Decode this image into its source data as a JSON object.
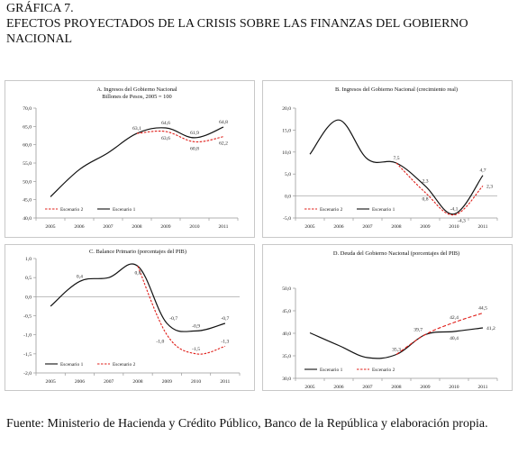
{
  "page": {
    "figure_label": "GRÁFICA 7.",
    "figure_title": "EFECTOS PROYECTADOS DE LA CRISIS SOBRE LAS FINANZAS DEL GOBIERNO NACIONAL",
    "source": "Fuente: Ministerio de Hacienda y Crédito Público, Banco de la República y elaboración propia."
  },
  "colors": {
    "escenario1": "#111111",
    "escenario2": "#e0201b",
    "axis": "#999999"
  },
  "chart_data": [
    {
      "id": "A",
      "type": "line",
      "title": "A. Ingresos del Gobierno Nacional",
      "subtitle": "Billones de Pesos, 2005 = 100",
      "x": [
        "2005",
        "2006",
        "2007",
        "2008",
        "2009",
        "2010",
        "2011"
      ],
      "ylim": [
        40,
        70
      ],
      "yticks": [
        "40,0",
        "45,0",
        "50,0",
        "55,0",
        "60,0",
        "65,0",
        "70,0"
      ],
      "ytick_values": [
        40,
        45,
        50,
        55,
        60,
        65,
        70
      ],
      "legend": [
        "Escenario 2",
        "Escenario 1"
      ],
      "legend_position": "bottom-left",
      "series": [
        {
          "name": "Escenario 1",
          "style": "solid",
          "values": [
            45.8,
            53.2,
            57.8,
            63.1,
            64.6,
            61.9,
            64.8
          ]
        },
        {
          "name": "Escenario 2",
          "style": "dashed",
          "values": [
            null,
            null,
            null,
            63.1,
            63.6,
            60.8,
            62.2
          ]
        }
      ],
      "labels": [
        {
          "text": "63,1",
          "x": 3,
          "y": 63.1,
          "pos": "above"
        },
        {
          "text": "64,6",
          "x": 4,
          "y": 64.6,
          "pos": "above"
        },
        {
          "text": "63,6",
          "x": 4,
          "y": 63.6,
          "pos": "below"
        },
        {
          "text": "61,9",
          "x": 5,
          "y": 61.9,
          "pos": "above"
        },
        {
          "text": "60,8",
          "x": 5,
          "y": 60.8,
          "pos": "below"
        },
        {
          "text": "64,8",
          "x": 6,
          "y": 64.8,
          "pos": "above"
        },
        {
          "text": "62,2",
          "x": 6,
          "y": 62.2,
          "pos": "below"
        }
      ]
    },
    {
      "id": "B",
      "type": "line",
      "title": "B. Ingresos del Gobierno Nacional (crecimiento real)",
      "x": [
        "2005",
        "2006",
        "2007",
        "2008",
        "2009",
        "2010",
        "2011"
      ],
      "ylim": [
        -5,
        20
      ],
      "yticks": [
        "-5,0",
        "0,0",
        "5,0",
        "10,0",
        "15,0",
        "20,0"
      ],
      "ytick_values": [
        -5,
        0,
        5,
        10,
        15,
        20
      ],
      "legend": [
        "Escenario 2",
        "Escenario 1"
      ],
      "legend_position": "bottom-left",
      "series": [
        {
          "name": "Escenario 1",
          "style": "solid",
          "values": [
            9.5,
            17.3,
            8.4,
            7.5,
            2.3,
            -4.1,
            4.7
          ]
        },
        {
          "name": "Escenario 2",
          "style": "dashed",
          "values": [
            null,
            null,
            null,
            7.5,
            0.8,
            -4.3,
            2.3
          ]
        }
      ],
      "labels": [
        {
          "text": "7,5",
          "x": 3,
          "y": 7.5,
          "pos": "above"
        },
        {
          "text": "2,3",
          "x": 4,
          "y": 2.3,
          "pos": "above"
        },
        {
          "text": "0,8",
          "x": 4,
          "y": 0.8,
          "pos": "below"
        },
        {
          "text": "-4,1",
          "x": 5,
          "y": -4.1,
          "pos": "above"
        },
        {
          "text": "-4,3",
          "x": 5,
          "y": -4.3,
          "pos": "belowright"
        },
        {
          "text": "4,7",
          "x": 6,
          "y": 4.7,
          "pos": "above"
        },
        {
          "text": "2,3",
          "x": 6,
          "y": 2.3,
          "pos": "right"
        }
      ]
    },
    {
      "id": "C",
      "type": "line",
      "title": "C. Balance Primario (porcentajes del PIB)",
      "x": [
        "2005",
        "2006",
        "2007",
        "2008",
        "2009",
        "2010",
        "2011"
      ],
      "ylim": [
        -2.0,
        1.0
      ],
      "yticks": [
        "-2,0",
        "-1,5",
        "-1,0",
        "-0,5",
        "0,0",
        "0,5",
        "1,0"
      ],
      "ytick_values": [
        -2,
        -1.5,
        -1,
        -0.5,
        0,
        0.5,
        1
      ],
      "legend": [
        "Escenario 1",
        "Escenario 2"
      ],
      "legend_position": "bottom-left",
      "series": [
        {
          "name": "Escenario 1",
          "style": "solid",
          "values": [
            -0.25,
            0.4,
            0.5,
            0.8,
            -0.7,
            -0.9,
            -0.7
          ]
        },
        {
          "name": "Escenario 2",
          "style": "dashed",
          "values": [
            null,
            null,
            null,
            0.8,
            -1.0,
            -1.5,
            -1.3
          ]
        }
      ],
      "labels": [
        {
          "text": "0,4",
          "x": 1,
          "y": 0.4,
          "pos": "above"
        },
        {
          "text": "0,8",
          "x": 3,
          "y": 0.8,
          "pos": "below"
        },
        {
          "text": "-0,7",
          "x": 4,
          "y": -0.7,
          "pos": "aboveright"
        },
        {
          "text": "-1,0",
          "x": 4,
          "y": -1.0,
          "pos": "belowleft"
        },
        {
          "text": "-0,9",
          "x": 5,
          "y": -0.9,
          "pos": "above"
        },
        {
          "text": "-1,5",
          "x": 5,
          "y": -1.5,
          "pos": "above"
        },
        {
          "text": "-0,7",
          "x": 6,
          "y": -0.7,
          "pos": "above"
        },
        {
          "text": "-1,3",
          "x": 6,
          "y": -1.3,
          "pos": "above"
        }
      ]
    },
    {
      "id": "D",
      "type": "line",
      "title": "D. Deuda del Gobierno Nacional (porcentajes del PIB)",
      "x": [
        "2005",
        "2006",
        "2007",
        "2008",
        "2009",
        "2010",
        "2011"
      ],
      "ylim": [
        30,
        50
      ],
      "yticks": [
        "30,0",
        "35,0",
        "40,0",
        "45,0",
        "50,0"
      ],
      "ytick_values": [
        30,
        35,
        40,
        45,
        50
      ],
      "legend": [
        "Escenario 1",
        "Escenario 2"
      ],
      "legend_position": "bottom-left",
      "series": [
        {
          "name": "Escenario 1",
          "style": "solid",
          "values": [
            40.1,
            37.3,
            34.6,
            35.3,
            39.7,
            40.4,
            41.2
          ]
        },
        {
          "name": "Escenario 2",
          "style": "dashed",
          "values": [
            null,
            null,
            null,
            35.3,
            39.7,
            42.4,
            44.5
          ]
        }
      ],
      "labels": [
        {
          "text": "35,3",
          "x": 3,
          "y": 35.3,
          "pos": "above"
        },
        {
          "text": "39,7",
          "x": 4,
          "y": 39.7,
          "pos": "aboveleft"
        },
        {
          "text": "42,4",
          "x": 5,
          "y": 42.4,
          "pos": "above"
        },
        {
          "text": "40,4",
          "x": 5,
          "y": 40.4,
          "pos": "below"
        },
        {
          "text": "44,5",
          "x": 6,
          "y": 44.5,
          "pos": "above"
        },
        {
          "text": "41,2",
          "x": 6,
          "y": 41.2,
          "pos": "right"
        }
      ]
    }
  ]
}
